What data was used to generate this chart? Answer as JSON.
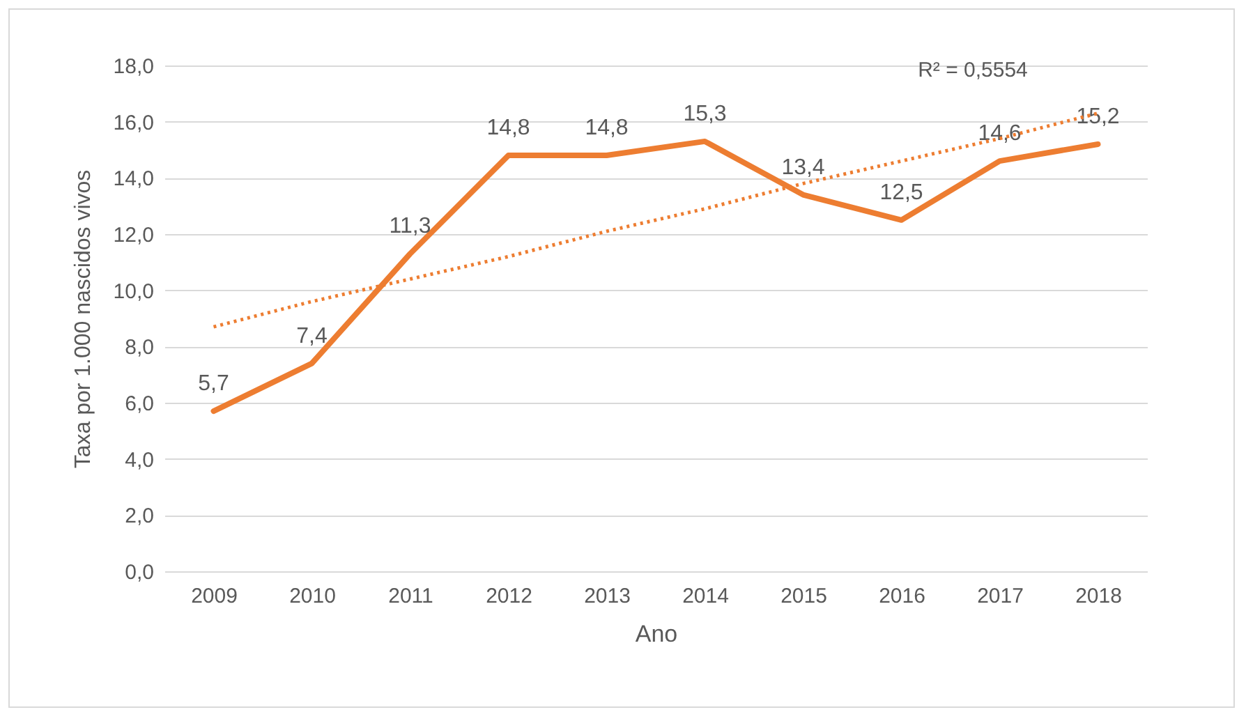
{
  "chart_data": {
    "type": "line",
    "xlabel": "Ano",
    "ylabel": "Taxa por 1.000 nascidos vivos",
    "categories": [
      "2009",
      "2010",
      "2011",
      "2012",
      "2013",
      "2014",
      "2015",
      "2016",
      "2017",
      "2018"
    ],
    "series": [
      {
        "type": "line",
        "color": "#ed7d31",
        "values": [
          5.7,
          7.4,
          11.3,
          14.8,
          14.8,
          15.3,
          13.4,
          12.5,
          14.6,
          15.2
        ],
        "value_labels": [
          "5,7",
          "7,4",
          "11,3",
          "14,8",
          "14,8",
          "15,3",
          "13,4",
          "12,5",
          "14,6",
          "15,2"
        ]
      },
      {
        "type": "line",
        "color": "#ed7d31",
        "line_style": "dotted",
        "values": [
          8.7,
          9.6,
          10.4,
          11.2,
          12.1,
          12.9,
          13.8,
          14.6,
          15.4,
          16.3
        ]
      }
    ],
    "ylim": [
      0,
      18
    ],
    "yticks": [
      {
        "value": 0,
        "label": "0,0"
      },
      {
        "value": 2,
        "label": "2,0"
      },
      {
        "value": 4,
        "label": "4,0"
      },
      {
        "value": 6,
        "label": "6,0"
      },
      {
        "value": 8,
        "label": "8,0"
      },
      {
        "value": 10,
        "label": "10,0"
      },
      {
        "value": 12,
        "label": "12,0"
      },
      {
        "value": 14,
        "label": "14,0"
      },
      {
        "value": 16,
        "label": "16,0"
      },
      {
        "value": 18,
        "label": "18,0"
      }
    ],
    "grid": "y",
    "legend": false,
    "marker": "none",
    "line_style": "solid",
    "annotations": [
      "R² = 0,5554"
    ]
  }
}
